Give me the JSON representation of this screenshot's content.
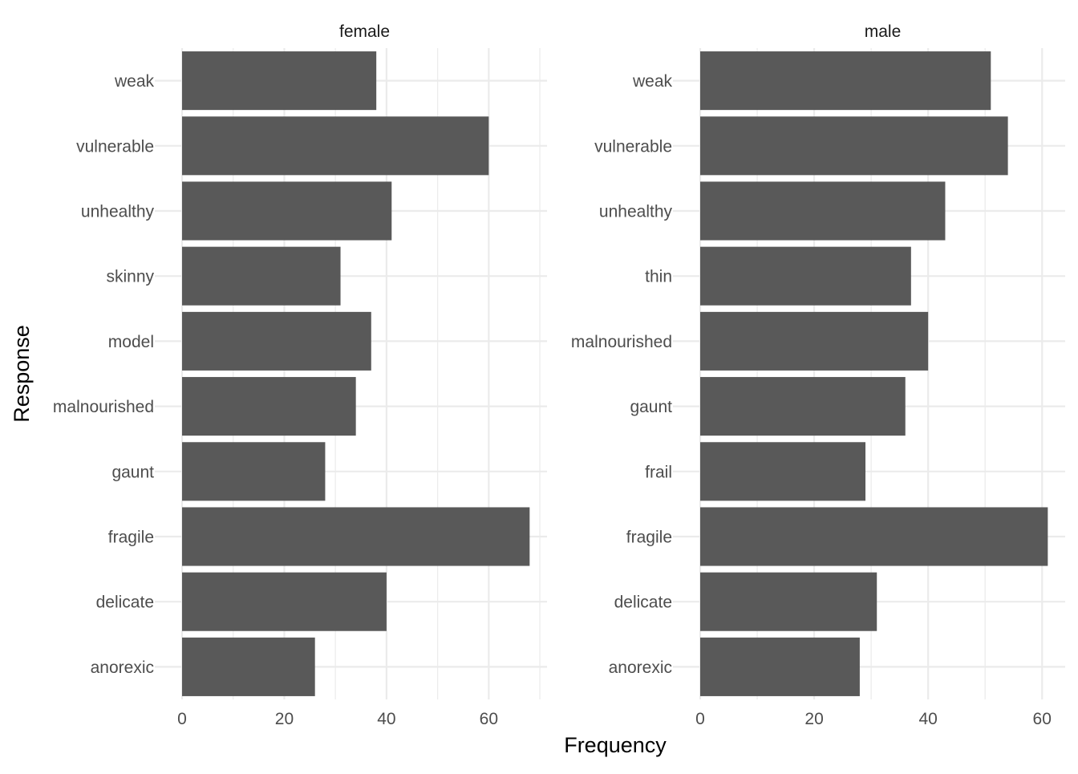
{
  "chart_data": {
    "type": "bar",
    "orientation": "horizontal",
    "xlabel": "Frequency",
    "ylabel": "Response",
    "grid": true,
    "bar_color": "#595959",
    "grid_color": "#ebebeb",
    "panels": [
      {
        "title": "female",
        "categories": [
          "anorexic",
          "delicate",
          "fragile",
          "gaunt",
          "malnourished",
          "model",
          "skinny",
          "unhealthy",
          "vulnerable",
          "weak"
        ],
        "values": [
          26,
          40,
          68,
          28,
          34,
          37,
          31,
          41,
          60,
          38
        ],
        "xlim": [
          0,
          71.4
        ],
        "xticks": [
          0,
          20,
          40,
          60
        ]
      },
      {
        "title": "male",
        "categories": [
          "anorexic",
          "delicate",
          "fragile",
          "frail",
          "gaunt",
          "malnourished",
          "thin",
          "unhealthy",
          "vulnerable",
          "weak"
        ],
        "values": [
          28,
          31,
          61,
          29,
          36,
          40,
          37,
          43,
          54,
          51
        ],
        "xlim": [
          0,
          64.05
        ],
        "xticks": [
          0,
          20,
          40,
          60
        ]
      }
    ]
  }
}
